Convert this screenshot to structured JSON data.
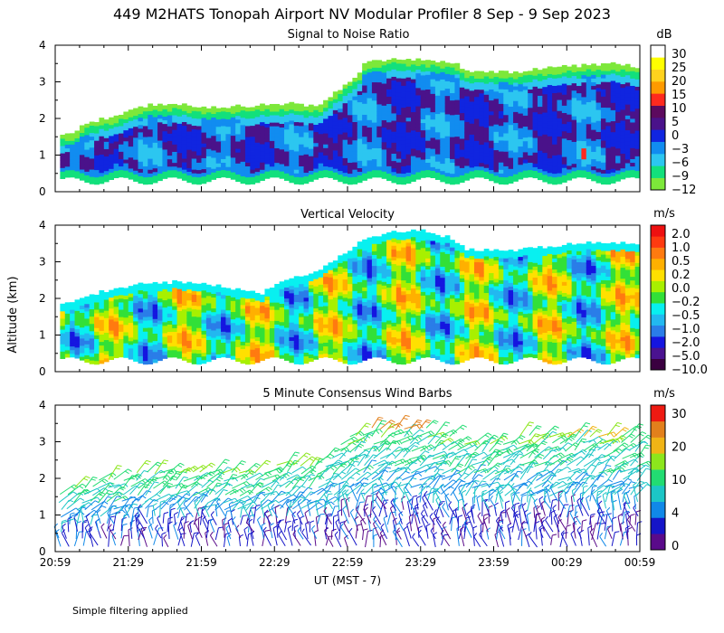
{
  "title": "449 M2HATS Tonopah Airport NV Modular Profiler  8 Sep -  9 Sep 2023",
  "footer_note": "Simple filtering applied",
  "colors": {
    "snr": [
      "#7de83a",
      "#12e07c",
      "#2cc6f0",
      "#118cf0",
      "#1025e0",
      "#4a128a",
      "#5c0a5e",
      "#ff2a1e",
      "#ff9a00",
      "#ffd21e",
      "#ffff00",
      "#ffffff"
    ],
    "vv": [
      "#3a0040",
      "#4a1290",
      "#1515e0",
      "#2a7de8",
      "#22b8f0",
      "#08f0f0",
      "#32e038",
      "#a8f000",
      "#ffe000",
      "#ffb000",
      "#ff7a10",
      "#ff3a10",
      "#ee1010"
    ],
    "wind": [
      "#5a0a8a",
      "#1515c8",
      "#1088e8",
      "#1cc6c6",
      "#22dc72",
      "#8ce61c",
      "#f0b416",
      "#e2801c",
      "#ee1a12"
    ]
  },
  "chart_data": [
    {
      "type": "heatmap",
      "title": "Signal to Noise Ratio",
      "unit_label": "dB",
      "ylabel": "Altitude (km)",
      "xlabel": "UT  (MST - 7)",
      "ylim": [
        0,
        4
      ],
      "yticks": [
        "0",
        "1",
        "2",
        "3",
        "4"
      ],
      "xticks": [
        "20:59",
        "21:29",
        "21:59",
        "22:29",
        "22:59",
        "23:29",
        "23:59",
        "00:29",
        "00:59"
      ],
      "colorbar_labels": [
        "30",
        "25",
        "20",
        "15",
        "10",
        "5",
        "0",
        "−3",
        "−6",
        "−9",
        "−12"
      ],
      "top_of_data_km": [
        [
          0,
          1.55
        ],
        [
          6,
          1.5
        ],
        [
          12,
          1.85
        ],
        [
          24,
          2.0
        ],
        [
          36,
          2.3
        ],
        [
          48,
          2.35
        ],
        [
          60,
          2.25
        ],
        [
          78,
          2.3
        ],
        [
          96,
          2.35
        ],
        [
          108,
          2.3
        ],
        [
          120,
          3.0
        ],
        [
          124,
          3.2
        ],
        [
          126,
          3.45
        ],
        [
          138,
          3.6
        ],
        [
          150,
          3.55
        ],
        [
          162,
          3.5
        ],
        [
          168,
          3.25
        ],
        [
          180,
          3.2
        ],
        [
          192,
          3.25
        ],
        [
          204,
          3.35
        ],
        [
          216,
          3.4
        ],
        [
          228,
          3.45
        ],
        [
          240,
          3.35
        ]
      ]
    },
    {
      "type": "heatmap",
      "title": "Vertical Velocity",
      "unit_label": "m/s",
      "ylabel": "Altitude (km)",
      "xlabel": "UT  (MST - 7)",
      "ylim": [
        0,
        4
      ],
      "yticks": [
        "0",
        "1",
        "2",
        "3",
        "4"
      ],
      "xticks": [
        "20:59",
        "21:29",
        "21:59",
        "22:29",
        "22:59",
        "23:29",
        "23:59",
        "00:29",
        "00:59"
      ],
      "colorbar_labels": [
        "2.0",
        "1.0",
        "0.5",
        "0.2",
        "0.0",
        "−0.2",
        "−0.5",
        "−1.0",
        "−2.0",
        "−5.0",
        "−10.0"
      ],
      "top_of_data_km": [
        [
          0,
          1.75
        ],
        [
          12,
          2.0
        ],
        [
          24,
          2.25
        ],
        [
          36,
          2.35
        ],
        [
          48,
          2.4
        ],
        [
          60,
          2.4
        ],
        [
          72,
          2.2
        ],
        [
          84,
          2.1
        ],
        [
          96,
          2.5
        ],
        [
          108,
          2.75
        ],
        [
          120,
          3.3
        ],
        [
          126,
          3.55
        ],
        [
          138,
          3.75
        ],
        [
          150,
          3.8
        ],
        [
          162,
          3.6
        ],
        [
          168,
          3.3
        ],
        [
          180,
          3.25
        ],
        [
          192,
          3.3
        ],
        [
          204,
          3.4
        ],
        [
          216,
          3.45
        ],
        [
          228,
          3.5
        ],
        [
          240,
          3.4
        ]
      ]
    },
    {
      "type": "scatter",
      "title": "5 Minute Consensus Wind Barbs",
      "unit_label": "m/s",
      "ylabel": "Altitude (km)",
      "xlabel": "UT  (MST - 7)",
      "ylim": [
        0,
        4
      ],
      "yticks": [
        "0",
        "1",
        "2",
        "3",
        "4"
      ],
      "xticks": [
        "20:59",
        "21:29",
        "21:59",
        "22:29",
        "22:59",
        "23:29",
        "23:59",
        "00:29",
        "00:59"
      ],
      "colorbar_labels": [
        "30",
        "20",
        "10",
        "4",
        "0"
      ],
      "top_of_data_km": [
        [
          0,
          1.5
        ],
        [
          12,
          1.9
        ],
        [
          24,
          2.05
        ],
        [
          36,
          2.2
        ],
        [
          48,
          2.25
        ],
        [
          60,
          2.3
        ],
        [
          72,
          2.25
        ],
        [
          84,
          2.3
        ],
        [
          96,
          2.4
        ],
        [
          108,
          2.5
        ],
        [
          120,
          3.2
        ],
        [
          132,
          3.4
        ],
        [
          144,
          3.55
        ],
        [
          156,
          3.3
        ],
        [
          168,
          3.1
        ],
        [
          180,
          3.05
        ],
        [
          192,
          3.2
        ],
        [
          204,
          3.35
        ],
        [
          216,
          3.3
        ],
        [
          228,
          3.25
        ],
        [
          240,
          3.1
        ]
      ]
    }
  ]
}
